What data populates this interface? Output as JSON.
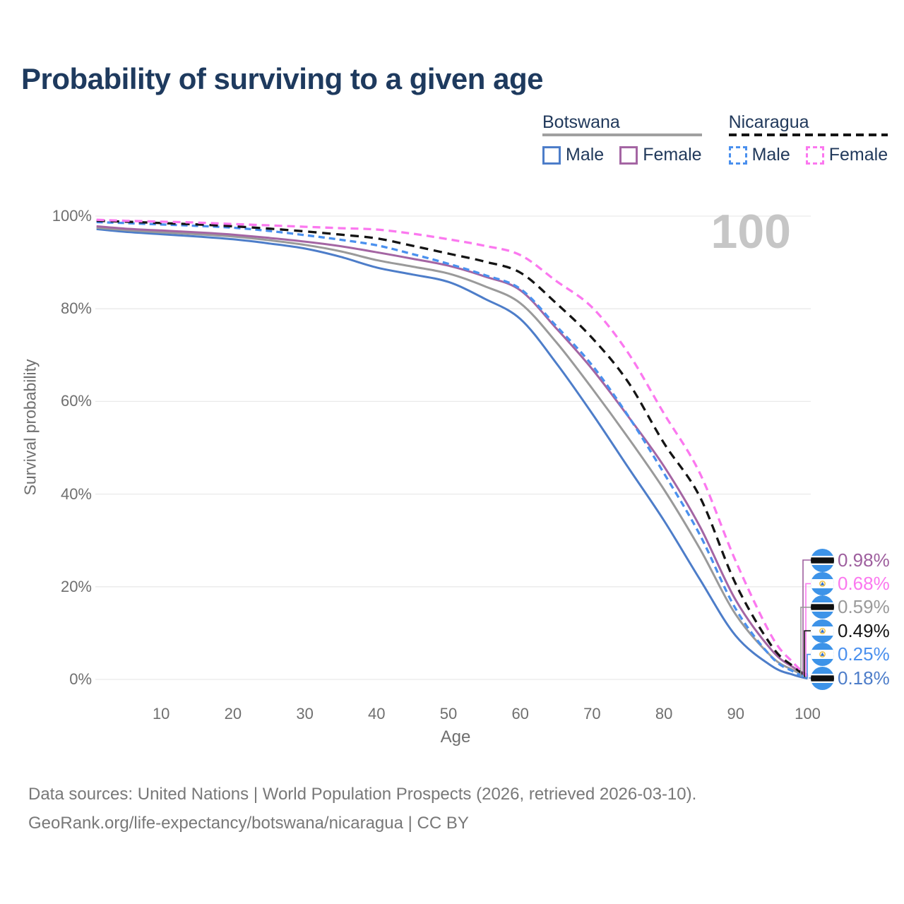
{
  "title": "Probability of surviving to a given age",
  "watermark": "100",
  "flag_colors": {
    "blue": "#3d93e8",
    "gold": "#f0c040",
    "cream": "#fdf6e3",
    "black": "#101010"
  },
  "legend": {
    "groups": [
      {
        "country": "Botswana",
        "line_style": "solid",
        "underline_color": "#a0a0a0",
        "items": [
          {
            "label": "Male",
            "color": "#4d7dc9"
          },
          {
            "label": "Female",
            "color": "#a465a3"
          }
        ]
      },
      {
        "country": "Nicaragua",
        "line_style": "dashed",
        "underline_color": "#141414",
        "items": [
          {
            "label": "Male",
            "color": "#4a90ee"
          },
          {
            "label": "Female",
            "color": "#fb78ef"
          }
        ]
      }
    ]
  },
  "chart_data": {
    "type": "line",
    "title": "Probability of surviving to a given age",
    "xlabel": "Age",
    "ylabel": "Survival probability",
    "xlim": [
      0,
      100
    ],
    "ylim": [
      0,
      100
    ],
    "grid": "horizontal",
    "hovered_x": "100",
    "x_ticks": [
      10,
      20,
      30,
      40,
      50,
      60,
      70,
      80,
      90,
      100
    ],
    "y_ticks": [
      {
        "pct": 0,
        "label": "0%"
      },
      {
        "pct": 20,
        "label": "20%"
      },
      {
        "pct": 40,
        "label": "40%"
      },
      {
        "pct": 60,
        "label": "60%"
      },
      {
        "pct": 80,
        "label": "80%"
      },
      {
        "pct": 100,
        "label": "100%"
      }
    ],
    "series": [
      {
        "id": "bot_male",
        "label": "Botswana Male",
        "country": "botswana",
        "sex": "male",
        "color": "#4d7dc9",
        "dash": null,
        "end_value_pct": 0.18,
        "points": [
          [
            1,
            97.2
          ],
          [
            5,
            96.6
          ],
          [
            10,
            96.1
          ],
          [
            15,
            95.6
          ],
          [
            20,
            95.0
          ],
          [
            25,
            94.1
          ],
          [
            30,
            93.0
          ],
          [
            35,
            91.2
          ],
          [
            40,
            88.9
          ],
          [
            45,
            87.4
          ],
          [
            50,
            85.8
          ],
          [
            55,
            82.2
          ],
          [
            60,
            77.8
          ],
          [
            65,
            68.3
          ],
          [
            70,
            57.4
          ],
          [
            75,
            45.8
          ],
          [
            80,
            34.3
          ],
          [
            85,
            21.6
          ],
          [
            90,
            9.4
          ],
          [
            95,
            2.9
          ],
          [
            98,
            1.0
          ],
          [
            100,
            0.18
          ]
        ]
      },
      {
        "id": "bot_all",
        "label": "Botswana",
        "country": "botswana",
        "sex": "all",
        "color": "#9a9a9a",
        "dash": null,
        "end_value_pct": 0.59,
        "points": [
          [
            1,
            97.5
          ],
          [
            5,
            97.0
          ],
          [
            10,
            96.5
          ],
          [
            15,
            96.1
          ],
          [
            20,
            95.6
          ],
          [
            25,
            94.8
          ],
          [
            30,
            93.8
          ],
          [
            35,
            92.4
          ],
          [
            40,
            90.5
          ],
          [
            45,
            89.1
          ],
          [
            50,
            87.6
          ],
          [
            55,
            84.9
          ],
          [
            60,
            81.2
          ],
          [
            65,
            72.8
          ],
          [
            70,
            62.8
          ],
          [
            75,
            52.2
          ],
          [
            80,
            41.0
          ],
          [
            85,
            28.2
          ],
          [
            90,
            14.0
          ],
          [
            95,
            4.9
          ],
          [
            98,
            2.0
          ],
          [
            100,
            0.59
          ]
        ]
      },
      {
        "id": "bot_female",
        "label": "Botswana Female",
        "country": "botswana",
        "sex": "female",
        "color": "#a465a3",
        "dash": null,
        "end_value_pct": 0.98,
        "points": [
          [
            1,
            97.8
          ],
          [
            5,
            97.3
          ],
          [
            10,
            96.9
          ],
          [
            15,
            96.5
          ],
          [
            20,
            96.0
          ],
          [
            25,
            95.3
          ],
          [
            30,
            94.5
          ],
          [
            35,
            93.5
          ],
          [
            40,
            92.2
          ],
          [
            45,
            90.8
          ],
          [
            50,
            89.3
          ],
          [
            55,
            87.0
          ],
          [
            60,
            84.0
          ],
          [
            65,
            75.8
          ],
          [
            70,
            67.0
          ],
          [
            75,
            56.8
          ],
          [
            80,
            46.0
          ],
          [
            85,
            33.0
          ],
          [
            90,
            17.1
          ],
          [
            95,
            6.3
          ],
          [
            98,
            2.6
          ],
          [
            100,
            0.98
          ]
        ]
      },
      {
        "id": "nic_male",
        "label": "Nicaragua Male",
        "country": "nicaragua",
        "sex": "male",
        "color": "#4a90ee",
        "dash": "9 6",
        "end_value_pct": 0.25,
        "points": [
          [
            1,
            98.7
          ],
          [
            5,
            98.5
          ],
          [
            10,
            98.2
          ],
          [
            15,
            97.9
          ],
          [
            20,
            97.5
          ],
          [
            25,
            96.8
          ],
          [
            30,
            95.9
          ],
          [
            35,
            94.9
          ],
          [
            40,
            93.7
          ],
          [
            45,
            91.8
          ],
          [
            50,
            89.7
          ],
          [
            55,
            87.3
          ],
          [
            60,
            84.3
          ],
          [
            65,
            76.3
          ],
          [
            70,
            67.8
          ],
          [
            75,
            56.9
          ],
          [
            80,
            44.5
          ],
          [
            85,
            31.2
          ],
          [
            90,
            15.2
          ],
          [
            95,
            4.8
          ],
          [
            98,
            1.7
          ],
          [
            100,
            0.25
          ]
        ]
      },
      {
        "id": "nic_all",
        "label": "Nicaragua",
        "country": "nicaragua",
        "sex": "all",
        "color": "#141414",
        "dash": "12 8",
        "end_value_pct": 0.49,
        "points": [
          [
            1,
            99.0
          ],
          [
            5,
            98.8
          ],
          [
            10,
            98.5
          ],
          [
            15,
            98.2
          ],
          [
            20,
            97.8
          ],
          [
            25,
            97.3
          ],
          [
            30,
            96.7
          ],
          [
            35,
            96.0
          ],
          [
            40,
            95.2
          ],
          [
            45,
            93.6
          ],
          [
            50,
            91.9
          ],
          [
            55,
            90.2
          ],
          [
            60,
            87.8
          ],
          [
            65,
            81.2
          ],
          [
            70,
            73.7
          ],
          [
            75,
            64.2
          ],
          [
            80,
            51.0
          ],
          [
            85,
            39.4
          ],
          [
            90,
            20.6
          ],
          [
            95,
            7.2
          ],
          [
            98,
            2.8
          ],
          [
            100,
            0.49
          ]
        ]
      },
      {
        "id": "nic_female",
        "label": "Nicaragua Female",
        "country": "nicaragua",
        "sex": "female",
        "color": "#fb78ef",
        "dash": "11 7",
        "end_value_pct": 0.68,
        "points": [
          [
            1,
            99.2
          ],
          [
            5,
            99.0
          ],
          [
            10,
            98.8
          ],
          [
            15,
            98.6
          ],
          [
            20,
            98.3
          ],
          [
            25,
            98.0
          ],
          [
            30,
            97.7
          ],
          [
            35,
            97.4
          ],
          [
            40,
            97.1
          ],
          [
            45,
            96.2
          ],
          [
            50,
            95.0
          ],
          [
            55,
            93.6
          ],
          [
            60,
            91.6
          ],
          [
            65,
            86.0
          ],
          [
            70,
            80.3
          ],
          [
            75,
            70.5
          ],
          [
            80,
            57.4
          ],
          [
            85,
            44.5
          ],
          [
            90,
            25.5
          ],
          [
            95,
            9.3
          ],
          [
            98,
            3.6
          ],
          [
            100,
            0.68
          ]
        ]
      }
    ],
    "end_labels": [
      {
        "value": "0.98%",
        "pct": 0.98,
        "flag": "botswana",
        "color": "#9e5f9e",
        "series": "bot_female"
      },
      {
        "value": "0.68%",
        "pct": 0.68,
        "flag": "nicaragua",
        "color": "#fb78ef",
        "series": "nic_female"
      },
      {
        "value": "0.59%",
        "pct": 0.59,
        "flag": "botswana",
        "color": "#9a9a9a",
        "series": "bot_all"
      },
      {
        "value": "0.49%",
        "pct": 0.49,
        "flag": "nicaragua",
        "color": "#141414",
        "series": "nic_all"
      },
      {
        "value": "0.25%",
        "pct": 0.25,
        "flag": "nicaragua",
        "color": "#4a90ee",
        "series": "nic_male"
      },
      {
        "value": "0.18%",
        "pct": 0.18,
        "flag": "botswana",
        "color": "#4d7dc9",
        "series": "bot_male"
      }
    ]
  },
  "footer": {
    "line1": "Data sources: United Nations | World Population Prospects (2026, retrieved 2026-03-10).",
    "line2": "GeoRank.org/life-expectancy/botswana/nicaragua | CC BY"
  }
}
